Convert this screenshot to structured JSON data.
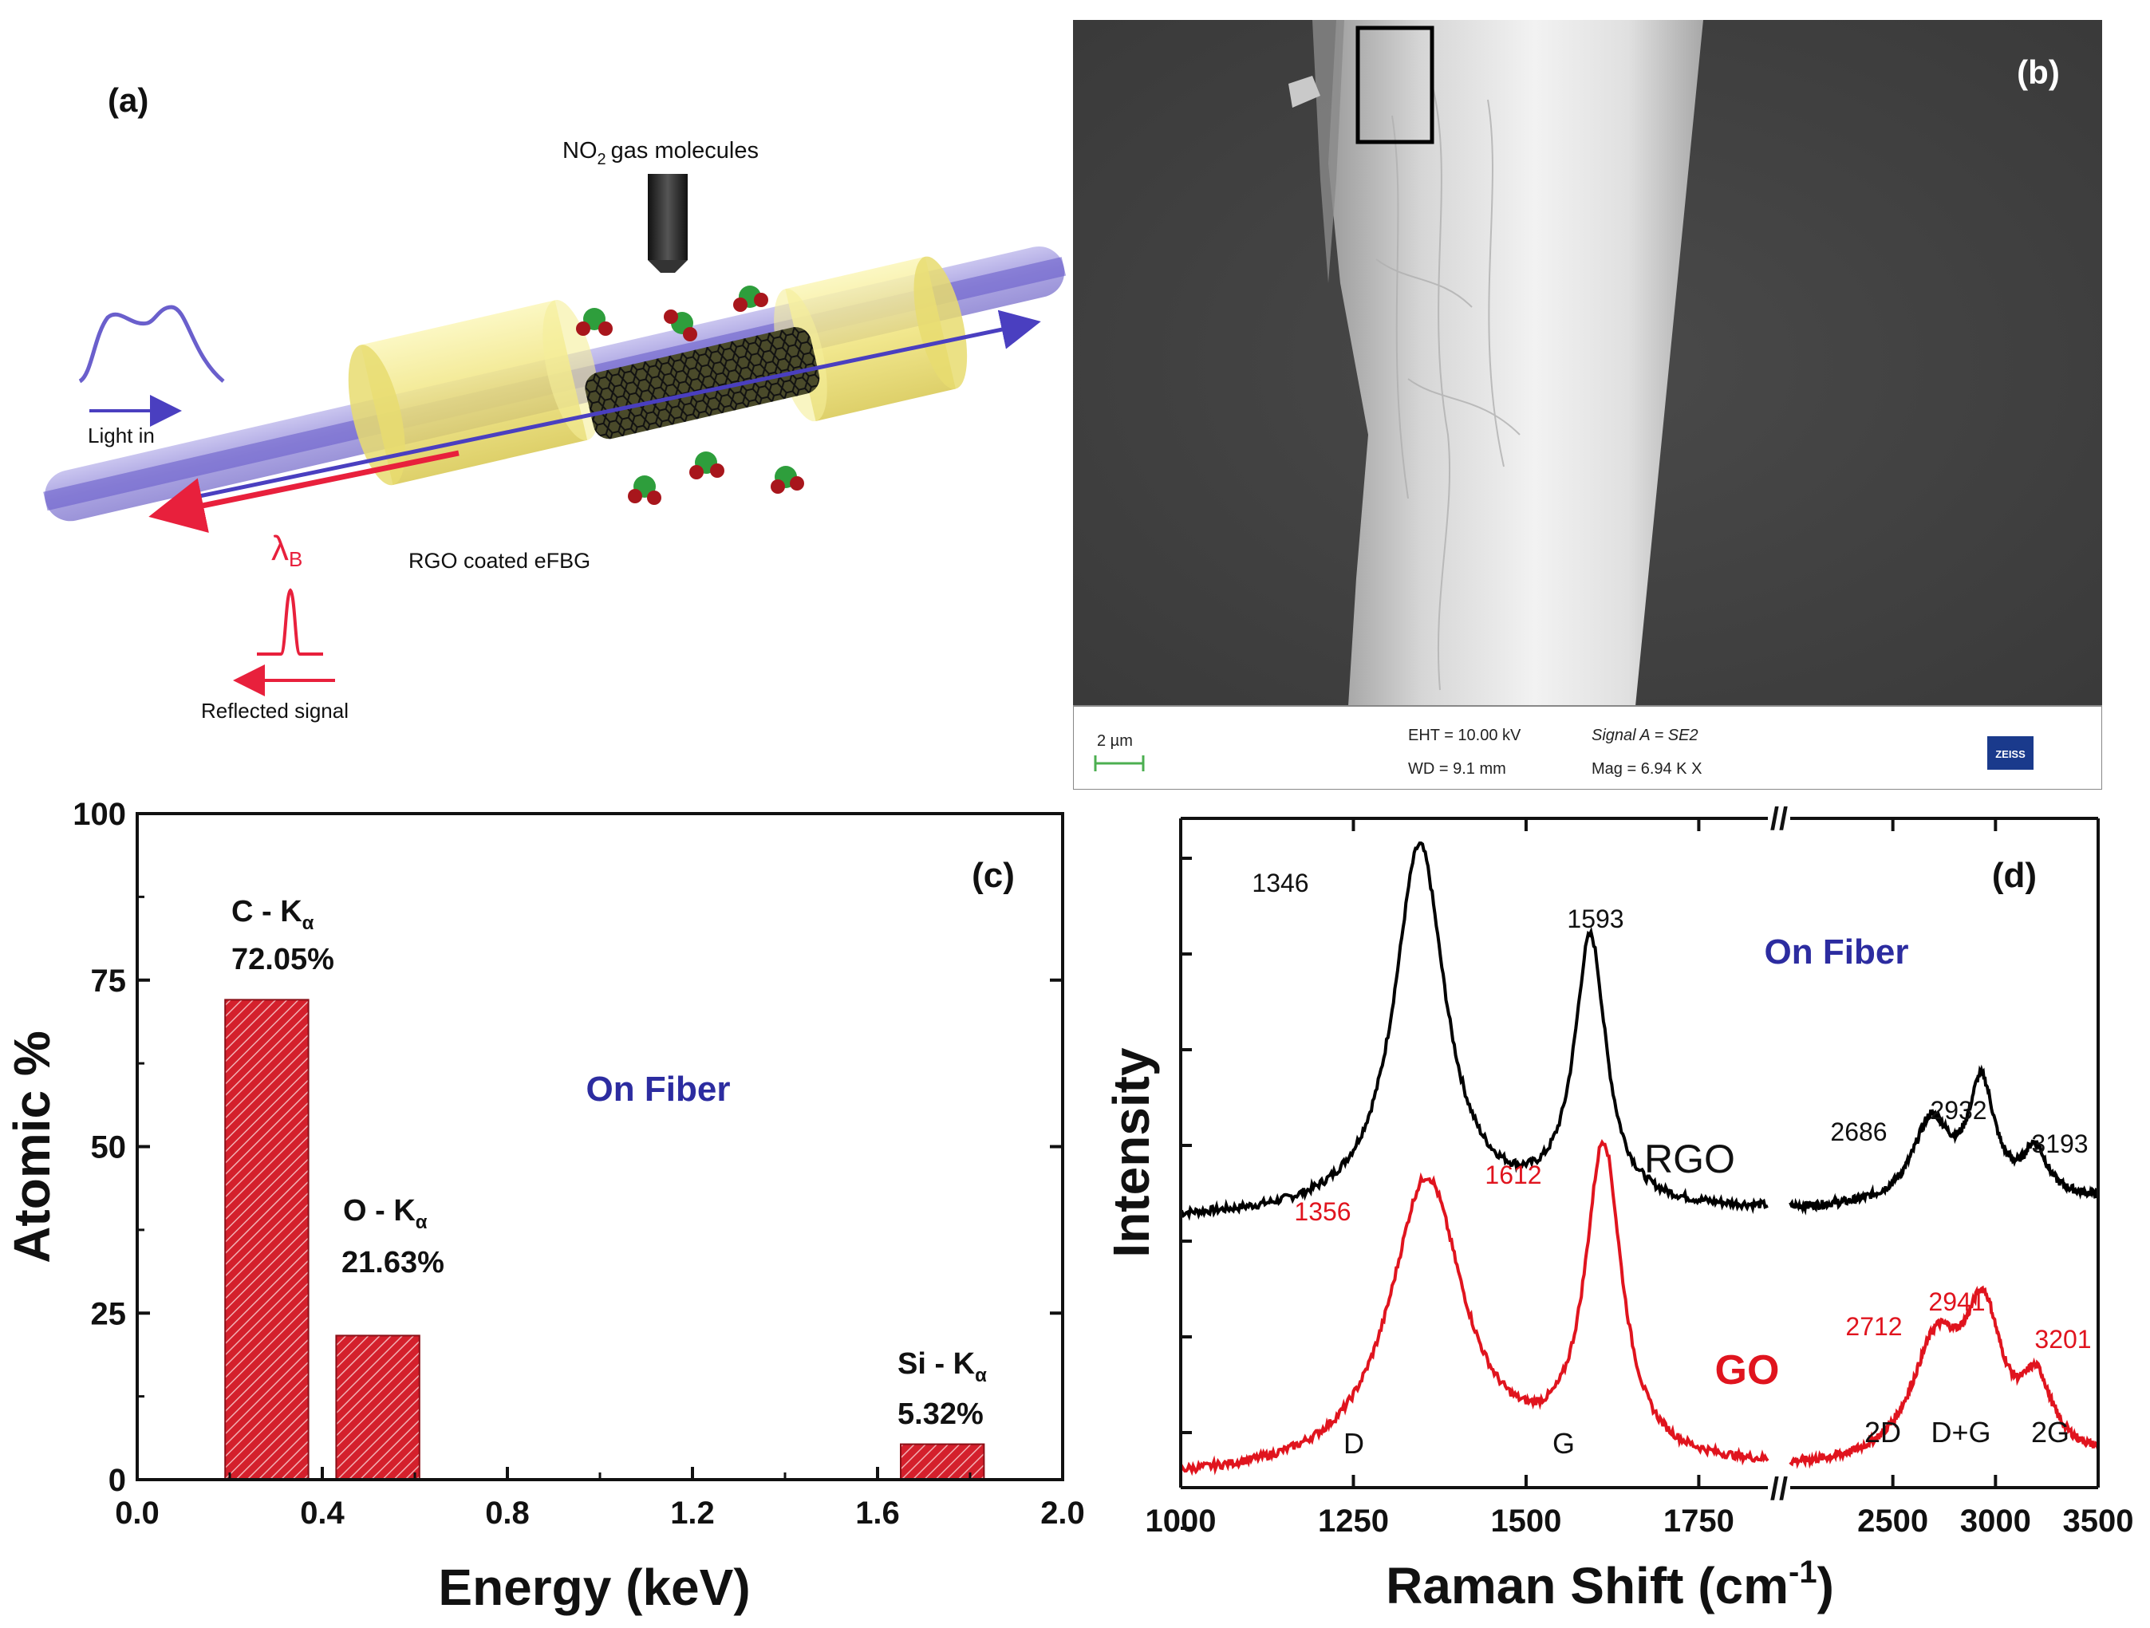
{
  "figure": {
    "panel_a": {
      "label": "(a)",
      "gas_label_prefix": "NO",
      "gas_label_sub": "2",
      "gas_label_suffix": "gas molecules",
      "light_in": "Light in",
      "lambda_label": "λ",
      "lambda_sub": "B",
      "device_label": "RGO coated eFBG",
      "reflected": "Reflected signal",
      "colors": {
        "fiber": "#8f86d8",
        "fiber_core": "#5a4fc4",
        "cladding": "#f2ea8a",
        "reflect": "#e8203c",
        "input": "#5a4fc4",
        "molecule_green": "#2e9e3c",
        "molecule_red": "#a8161c"
      }
    },
    "panel_b": {
      "label": "(b)",
      "scale": "2 µm",
      "eht": "EHT = 10.00 kV",
      "wd": "WD =   9.1 mm",
      "signal": "Signal A = SE2",
      "mag": "Mag =   6.94 K X",
      "logo": "ZEISS"
    },
    "panel_c": {
      "label": "(c)",
      "annotation": "On Fiber",
      "bar_labels": [
        {
          "element": "C - K",
          "sub": "α",
          "value_text": "72.05%"
        },
        {
          "element": "O - K",
          "sub": "α",
          "value_text": "21.63%"
        },
        {
          "element": "Si - K",
          "sub": "α",
          "value_text": "5.32%"
        }
      ]
    },
    "panel_d": {
      "label": "(d)",
      "annotation": "On Fiber",
      "series_labels": {
        "rgo": "RGO",
        "go": "GO"
      },
      "peak_names": [
        "D",
        "G",
        "2D",
        "D+G",
        "2G"
      ],
      "rgo_peaks": [
        "1346",
        "1593",
        "2686",
        "2932",
        "3193"
      ],
      "go_peaks": [
        "1356",
        "1612",
        "2712",
        "2941",
        "3201"
      ],
      "break_mark": "//"
    }
  },
  "chart_data": [
    {
      "type": "bar",
      "id": "c",
      "title": "",
      "xlabel": "Energy (keV)",
      "ylabel": "Atomic %",
      "xlim": [
        0.0,
        2.0
      ],
      "ylim": [
        0,
        100
      ],
      "xticks": [
        "0.0",
        "0.4",
        "0.8",
        "1.2",
        "1.6",
        "2.0"
      ],
      "yticks": [
        "0",
        "25",
        "50",
        "75",
        "100"
      ],
      "categories": [
        "C - Kα",
        "O - Kα",
        "Si - Kα"
      ],
      "x": [
        0.28,
        0.52,
        1.74
      ],
      "values": [
        72.05,
        21.63,
        5.32
      ],
      "bar_width_keV": 0.18,
      "color": "#d4202c"
    },
    {
      "type": "line",
      "id": "d",
      "xlabel": "Raman Shift (cm",
      "xlabel_sup": "-1",
      "xlabel_end": ")",
      "ylabel": "Intensity",
      "segments": [
        [
          1000,
          1850
        ],
        [
          2000,
          3500
        ]
      ],
      "xticks_left": [
        "1000",
        "1250",
        "1500",
        "1750"
      ],
      "xticks_right": [
        "2500",
        "3000",
        "3500"
      ],
      "series": [
        {
          "name": "RGO",
          "color": "#000000",
          "baseline": 0.4,
          "peaks": [
            [
              1346,
              0.55,
              45
            ],
            [
              1593,
              0.4,
              28
            ],
            [
              2686,
              0.12,
              110
            ],
            [
              2932,
              0.17,
              80
            ],
            [
              3193,
              0.07,
              70
            ]
          ],
          "slope": 0.03
        },
        {
          "name": "GO",
          "color": "#e0141e",
          "baseline": 0.01,
          "peaks": [
            [
              1356,
              0.44,
              65
            ],
            [
              1612,
              0.47,
              32
            ],
            [
              2712,
              0.17,
              150
            ],
            [
              2941,
              0.2,
              110
            ],
            [
              3201,
              0.1,
              90
            ]
          ],
          "slope": 0.03
        }
      ]
    }
  ]
}
